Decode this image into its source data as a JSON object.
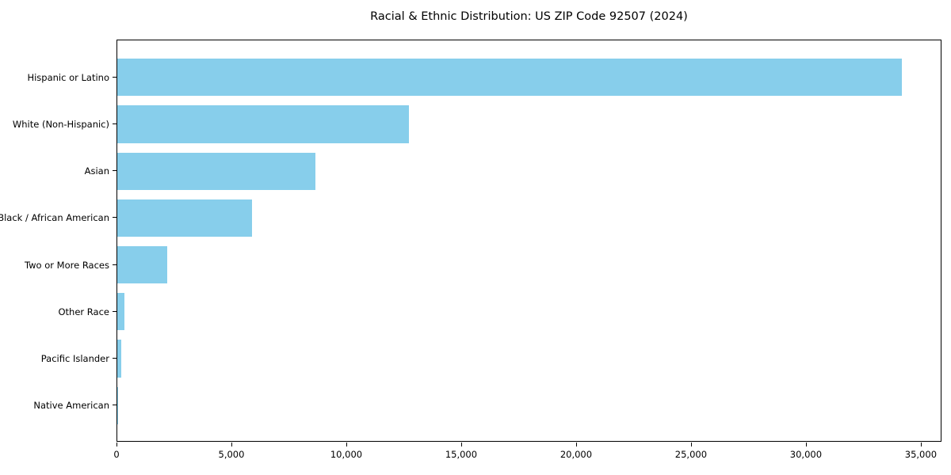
{
  "chart_data": {
    "type": "bar",
    "orientation": "horizontal",
    "title": "Racial & Ethnic Distribution: US ZIP Code 92507 (2024)",
    "categories": [
      "Hispanic or Latino",
      "White (Non-Hispanic)",
      "Asian",
      "Black / African American",
      "Two or More Races",
      "Other Race",
      "Pacific Islander",
      "Native American"
    ],
    "values": [
      34150,
      12700,
      8620,
      5850,
      2180,
      320,
      170,
      40
    ],
    "xlabel": "",
    "ylabel": "",
    "xlim": [
      0,
      35900
    ],
    "xticks": {
      "values": [
        0,
        5000,
        10000,
        15000,
        20000,
        25000,
        30000,
        35000
      ],
      "labels": [
        "0",
        "5,000",
        "10,000",
        "15,000",
        "20,000",
        "25,000",
        "30,000",
        "35,000"
      ]
    },
    "grid": false,
    "legend": "none",
    "bar_color": "#87CEEB",
    "background_color": "#ffffff",
    "spine_color": "#000000"
  }
}
